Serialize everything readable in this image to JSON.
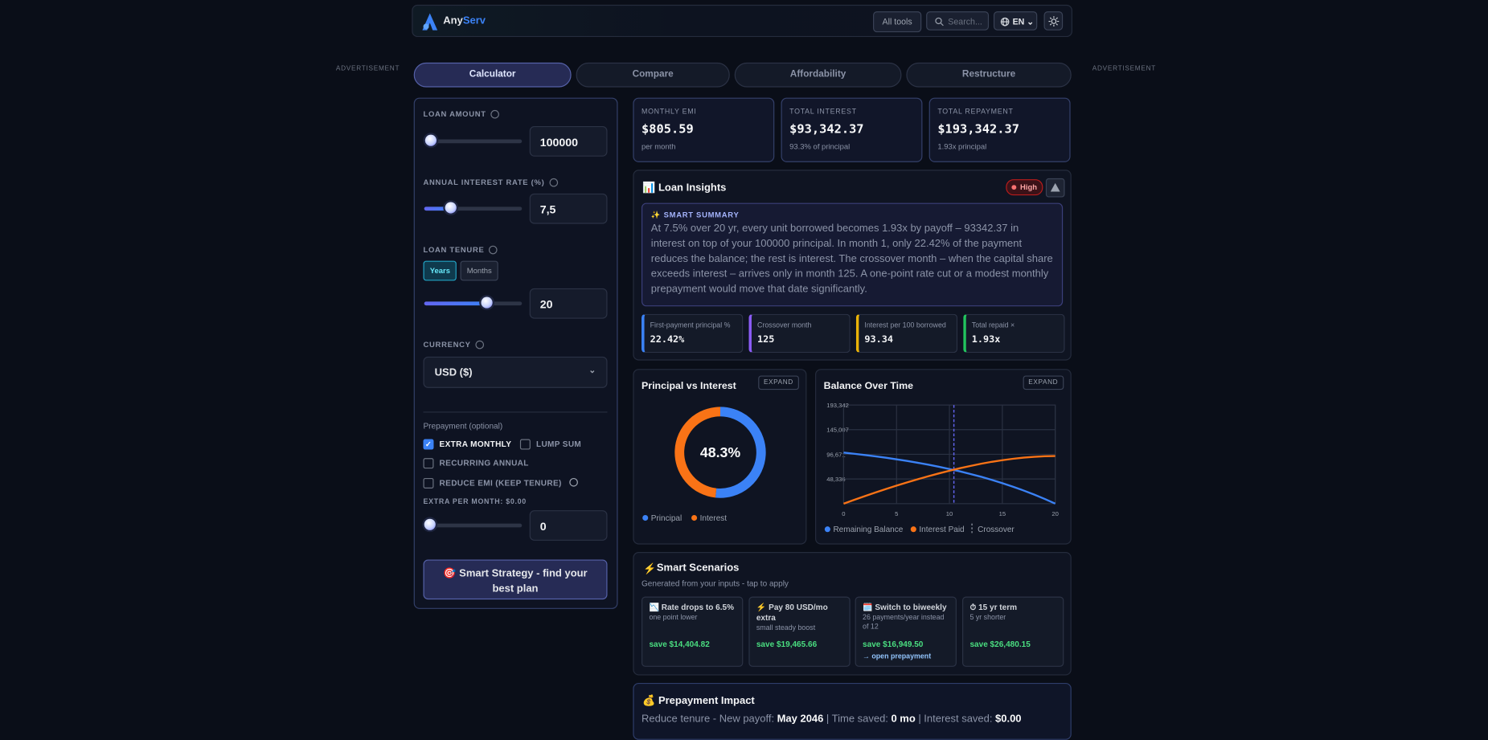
{
  "header": {
    "brand": [
      "Any",
      "Serv"
    ],
    "all_tools": "All tools",
    "search": "Search...",
    "lang": "EN"
  },
  "ads": [
    "ADVERTISEMENT",
    "ADVERTISEMENT"
  ],
  "tabs": [
    "Calculator",
    "Compare",
    "Affordability",
    "Restructure"
  ],
  "form": {
    "loan_amount_label": "LOAN AMOUNT",
    "loan_amount": "100000",
    "rate_label": "ANNUAL INTEREST RATE (%)",
    "rate": "7,5",
    "tenure_label": "LOAN TENURE",
    "tenure_units": [
      "Years",
      "Months"
    ],
    "tenure": "20",
    "currency_label": "CURRENCY",
    "currency": "USD ($)",
    "prepayment_label": "Prepayment (optional)",
    "options": [
      {
        "label": "EXTRA MONTHLY",
        "checked": true
      },
      {
        "label": "LUMP SUM",
        "checked": false
      },
      {
        "label": "RECURRING ANNUAL",
        "checked": false
      },
      {
        "label": "REDUCE EMI (KEEP TENURE)",
        "checked": false
      }
    ],
    "extra_label": "EXTRA PER MONTH: $0.00",
    "extra": "0",
    "strategy_button": "🎯 Smart Strategy - find your best plan"
  },
  "stats": [
    {
      "label": "MONTHLY EMI",
      "value": "$805.59",
      "note": "per month"
    },
    {
      "label": "TOTAL INTEREST",
      "value": "$93,342.37",
      "note": "93.3% of principal"
    },
    {
      "label": "TOTAL REPAYMENT",
      "value": "$193,342.37",
      "note": "1.93x principal"
    }
  ],
  "insights": {
    "title": "📊 Loan Insights",
    "badge": "High",
    "summary_label": "✨ SMART SUMMARY",
    "summary": "At 7.5% over 20 yr, every unit borrowed becomes 1.93x by payoff – 93342.37 in interest on top of your 100000 principal. In month 1, only 22.42% of the payment reduces the balance; the rest is interest. The crossover month – when the capital share exceeds interest – arrives only in month 125. A one-point rate cut or a modest monthly prepayment would move that date significantly.",
    "metrics": [
      {
        "label": "First-payment principal %",
        "value": "22.42%",
        "color": "#3b82f6"
      },
      {
        "label": "Crossover month",
        "value": "125",
        "color": "#8b5cf6"
      },
      {
        "label": "Interest per 100 borrowed",
        "value": "93.34",
        "color": "#eab308"
      },
      {
        "label": "Total repaid ×",
        "value": "1.93x",
        "color": "#22c55e"
      }
    ]
  },
  "chart_data": [
    {
      "type": "donut",
      "title": "Principal vs Interest",
      "button": "EXPAND",
      "categories": [
        "Principal",
        "Interest"
      ],
      "values": [
        51.7,
        48.3
      ],
      "colors": [
        "#3b82f6",
        "#f97316"
      ],
      "center_label": "48.3%"
    },
    {
      "type": "line",
      "title": "Balance Over Time",
      "button": "EXPAND",
      "x": [
        0,
        1,
        2,
        3,
        4,
        5,
        6,
        7,
        8,
        9,
        10,
        11,
        12,
        13,
        14,
        15,
        16,
        17,
        18,
        19,
        20
      ],
      "series": [
        {
          "name": "Remaining Balance",
          "color": "#3b82f6",
          "values": [
            100000,
            97757,
            95340,
            92731,
            89928,
            86903,
            83643,
            80130,
            76344,
            72264,
            67868,
            63131,
            58025,
            52524,
            46595,
            40206,
            33321,
            25901,
            17906,
            9290,
            0
          ]
        },
        {
          "name": "Interest Paid",
          "color": "#f97316",
          "values": [
            0,
            7424,
            14674,
            21732,
            28596,
            35238,
            41646,
            47800,
            53681,
            59268,
            64539,
            69469,
            74030,
            78196,
            81934,
            85212,
            87994,
            90241,
            91913,
            92965,
            93342
          ]
        }
      ],
      "markers": [
        {
          "name": "Crossover",
          "x": 10.42,
          "color": "#6366f1"
        }
      ],
      "xlim": [
        0,
        20
      ],
      "xticks": [
        0,
        5,
        10,
        15,
        20
      ],
      "ylim": [
        0,
        193342
      ],
      "yticks": [
        {
          "value": 48336,
          "label": "48,336"
        },
        {
          "value": 96671,
          "label": "96,671"
        },
        {
          "value": 145007,
          "label": "145,007"
        },
        {
          "value": 193342,
          "label": "193,342"
        }
      ],
      "grid": true
    }
  ],
  "scenarios": {
    "title": "Smart Scenarios",
    "subtitle": "Generated from your inputs - tap to apply",
    "cards": [
      {
        "title": "📉 Rate drops to 6.5%",
        "note": "one point lower",
        "save": "save $14,404.82"
      },
      {
        "title": "⚡ Pay 80 USD/mo extra",
        "note": "small steady boost",
        "save": "save $19,465.66"
      },
      {
        "title": "🗓️ Switch to biweekly",
        "note": "26 payments/year instead of 12",
        "save": "save $16,949.50",
        "link": "→ open prepayment"
      },
      {
        "title": "⏱ 15 yr term",
        "note": "5 yr shorter",
        "save": "save $26,480.15"
      }
    ]
  },
  "prepayment": {
    "title": "💰 Prepayment Impact",
    "parts": [
      "Reduce tenure - New payoff:",
      "May 2046",
      "| Time saved:",
      "0 mo",
      "| Interest saved:",
      "$0.00"
    ]
  }
}
